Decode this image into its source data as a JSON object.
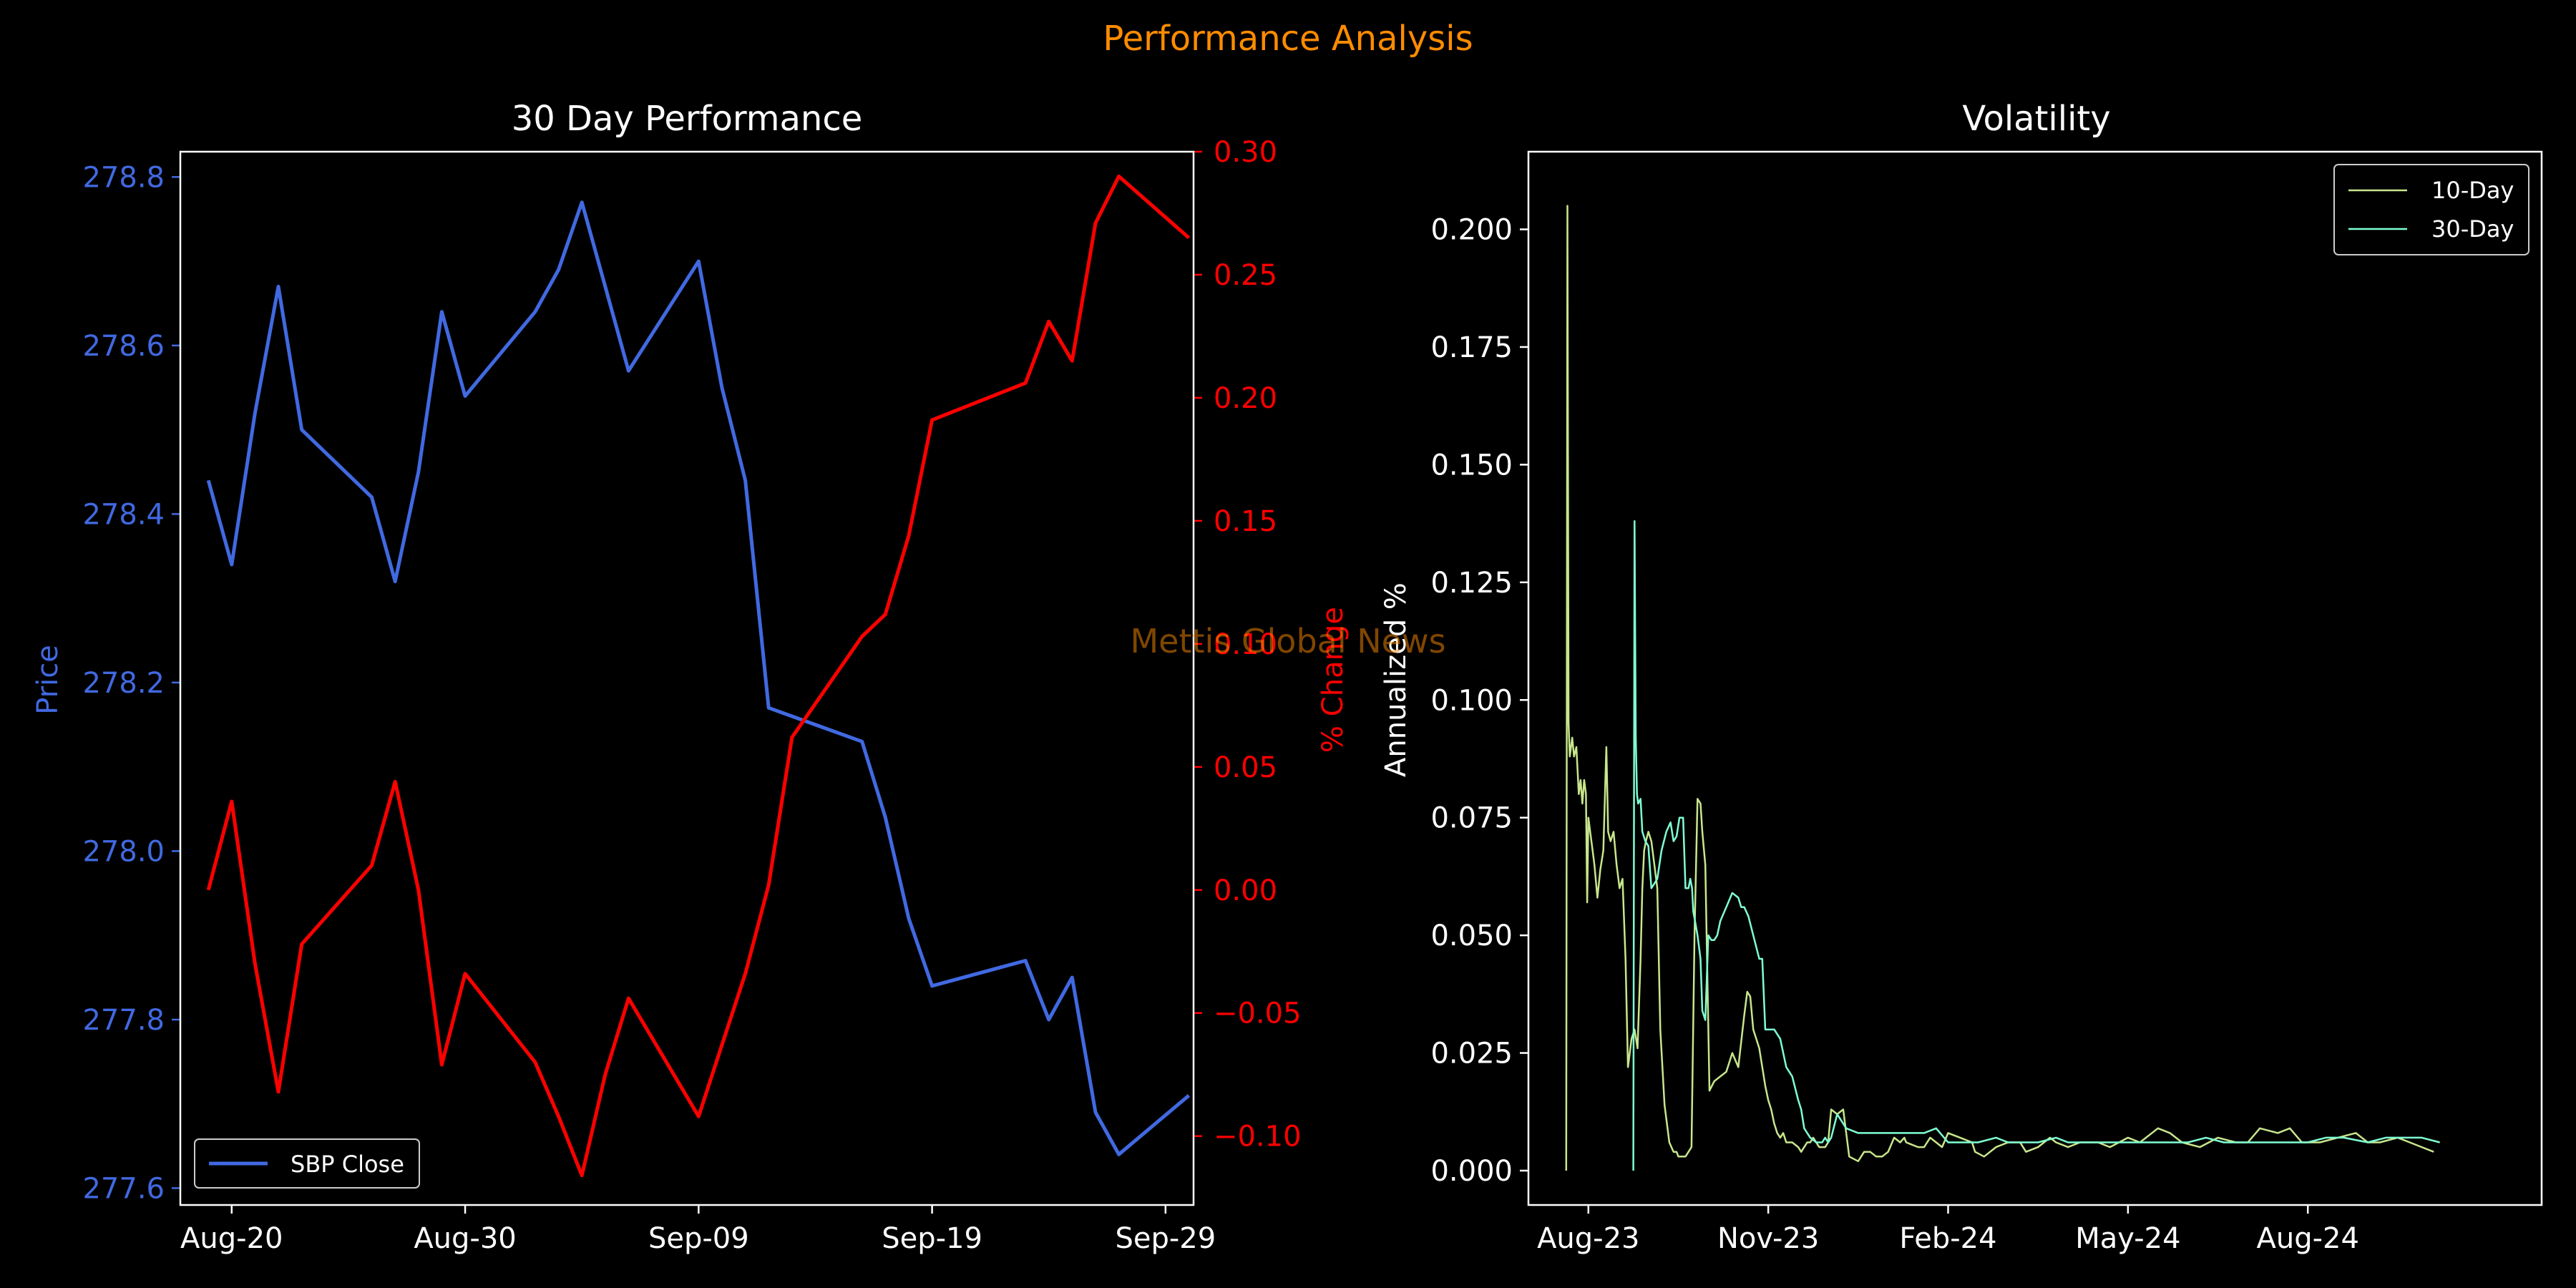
{
  "figure": {
    "suptitle": "Performance Analysis",
    "watermark": "Mettis Global News",
    "colors": {
      "background": "#000000",
      "suptitle": "#ff8c00",
      "price": "#4169e1",
      "pct": "#ff0000",
      "text": "#ffffff",
      "watermark": "#ff8c00",
      "vol10": "#c8e68c",
      "vol30": "#7fffd4"
    }
  },
  "chart_data": [
    {
      "type": "line",
      "title": "30 Day Performance",
      "xlabel": "",
      "ylabel": "Price",
      "y2label": "% Change",
      "xticks": [
        {
          "label": "Aug-20",
          "d": 0
        },
        {
          "label": "Aug-30",
          "d": 10
        },
        {
          "label": "Sep-09",
          "d": 20
        },
        {
          "label": "Sep-19",
          "d": 30
        },
        {
          "label": "Sep-29",
          "d": 40
        }
      ],
      "xlim": [
        -2.2,
        41.2
      ],
      "ylim": [
        277.58,
        278.83
      ],
      "yticks": [
        "277.6",
        "277.8",
        "278.0",
        "278.2",
        "278.4",
        "278.6",
        "278.8"
      ],
      "y2lim": [
        -0.128,
        0.3
      ],
      "y2ticks": [
        "−0.10",
        "−0.05",
        "0.00",
        "0.05",
        "0.10",
        "0.15",
        "0.20",
        "0.25",
        "0.30"
      ],
      "legend": {
        "entries": [
          "SBP Close"
        ],
        "position": "lower-left"
      },
      "series": [
        {
          "name": "SBP Close",
          "axis": "left",
          "x": [
            "Aug-19",
            "Aug-20",
            "Aug-21",
            "Aug-22",
            "Aug-23",
            "Aug-26",
            "Aug-27",
            "Aug-28",
            "Aug-29",
            "Aug-30",
            "Sep-02",
            "Sep-03",
            "Sep-04",
            "Sep-05",
            "Sep-06",
            "Sep-09",
            "Sep-10",
            "Sep-11",
            "Sep-12",
            "Sep-13",
            "Sep-16",
            "Sep-17",
            "Sep-18",
            "Sep-19",
            "Sep-23",
            "Sep-24",
            "Sep-25",
            "Sep-26",
            "Sep-27",
            "Sep-30"
          ],
          "d": [
            -1,
            0,
            1,
            2,
            3,
            6,
            7,
            8,
            9,
            10,
            13,
            14,
            15,
            16,
            17,
            20,
            21,
            22,
            23,
            24,
            27,
            28,
            29,
            30,
            34,
            35,
            36,
            37,
            38,
            41
          ],
          "y": [
            278.44,
            278.34,
            278.52,
            278.67,
            278.5,
            278.42,
            278.32,
            278.45,
            278.64,
            278.54,
            278.64,
            278.69,
            278.77,
            278.67,
            278.57,
            278.7,
            278.55,
            278.44,
            278.17,
            278.16,
            278.13,
            278.04,
            277.92,
            277.84,
            277.87,
            277.8,
            277.85,
            277.69,
            277.64,
            277.71
          ],
          "color": "#4169e1"
        },
        {
          "name": "% Change",
          "axis": "right",
          "x": [
            "Aug-19",
            "Aug-20",
            "Aug-21",
            "Aug-22",
            "Aug-23",
            "Aug-26",
            "Aug-27",
            "Aug-28",
            "Aug-29",
            "Aug-30",
            "Sep-02",
            "Sep-03",
            "Sep-04",
            "Sep-05",
            "Sep-06",
            "Sep-09",
            "Sep-10",
            "Sep-11",
            "Sep-12",
            "Sep-13",
            "Sep-16",
            "Sep-17",
            "Sep-18",
            "Sep-19",
            "Sep-23",
            "Sep-24",
            "Sep-25",
            "Sep-26",
            "Sep-27",
            "Sep-30"
          ],
          "d": [
            -1,
            0,
            1,
            2,
            3,
            6,
            7,
            8,
            9,
            10,
            13,
            14,
            15,
            16,
            17,
            20,
            21,
            22,
            23,
            24,
            27,
            28,
            29,
            30,
            34,
            35,
            36,
            37,
            38,
            41
          ],
          "y": [
            0.0,
            0.036,
            -0.03,
            -0.082,
            -0.022,
            0.01,
            0.044,
            0.0,
            -0.071,
            -0.034,
            -0.07,
            -0.092,
            -0.116,
            -0.075,
            -0.044,
            -0.092,
            -0.063,
            -0.034,
            0.002,
            0.062,
            0.103,
            0.112,
            0.144,
            0.191,
            0.206,
            0.231,
            0.215,
            0.271,
            0.29,
            0.265
          ],
          "color": "#ff0000"
        }
      ]
    },
    {
      "type": "line",
      "title": "Volatility",
      "xlabel": "",
      "ylabel": "Annualized %",
      "xticks": [
        {
          "label": "Aug-23",
          "m": 0
        },
        {
          "label": "Nov-23",
          "m": 3
        },
        {
          "label": "Feb-24",
          "m": 6
        },
        {
          "label": "May-24",
          "m": 9
        },
        {
          "label": "Aug-24",
          "m": 12
        }
      ],
      "xlim": [
        -1.0,
        15.9
      ],
      "ylim": [
        -0.0073,
        0.2165
      ],
      "yticks": [
        "0.000",
        "0.025",
        "0.050",
        "0.075",
        "0.100",
        "0.125",
        "0.150",
        "0.175",
        "0.200"
      ],
      "legend": {
        "entries": [
          "10-Day",
          "30-Day"
        ],
        "position": "top-right"
      },
      "series": [
        {
          "name": "10-Day",
          "color": "#c8e68c",
          "m": [
            -0.37,
            -0.35,
            -0.33,
            -0.31,
            -0.27,
            -0.24,
            -0.2,
            -0.16,
            -0.13,
            -0.1,
            -0.07,
            -0.04,
            -0.02,
            0.0,
            0.03,
            0.07,
            0.1,
            0.15,
            0.2,
            0.25,
            0.3,
            0.33,
            0.37,
            0.42,
            0.47,
            0.52,
            0.57,
            0.62,
            0.66,
            0.72,
            0.77,
            0.82,
            0.87,
            0.9,
            0.93,
            0.96,
            1.0,
            1.05,
            1.1,
            1.15,
            1.2,
            1.27,
            1.35,
            1.42,
            1.47,
            1.5,
            1.56,
            1.62,
            1.67,
            1.72,
            1.77,
            1.82,
            1.87,
            1.9,
            1.95,
            2.02,
            2.1,
            2.2,
            2.3,
            2.4,
            2.5,
            2.6,
            2.65,
            2.7,
            2.75,
            2.8,
            2.85,
            2.9,
            2.95,
            3.0,
            3.05,
            3.1,
            3.15,
            3.2,
            3.25,
            3.3,
            3.4,
            3.5,
            3.55,
            3.6,
            3.65,
            3.7,
            3.75,
            3.8,
            3.85,
            3.9,
            3.95,
            4.0,
            4.05,
            4.15,
            4.25,
            4.35,
            4.5,
            4.6,
            4.7,
            4.8,
            4.9,
            5.0,
            5.1,
            5.2,
            5.27,
            5.3,
            5.5,
            5.6,
            5.65,
            5.7,
            5.8,
            5.9,
            6.0,
            6.2,
            6.4,
            6.45,
            6.6,
            6.8,
            7.0,
            7.2,
            7.3,
            7.5,
            7.7,
            7.8,
            8.0,
            8.2,
            8.5,
            8.7,
            9.0,
            9.2,
            9.5,
            9.7,
            9.9,
            10.2,
            10.5,
            10.8,
            11.0,
            11.2,
            11.5,
            11.7,
            11.9,
            12.2,
            12.5,
            12.8,
            13.0,
            13.2,
            13.5,
            13.7,
            13.9,
            14.1,
            14.2
          ],
          "v": [
            0.0,
            0.205,
            0.095,
            0.088,
            0.092,
            0.088,
            0.09,
            0.08,
            0.083,
            0.078,
            0.083,
            0.08,
            0.057,
            0.075,
            0.072,
            0.068,
            0.065,
            0.058,
            0.064,
            0.068,
            0.09,
            0.072,
            0.07,
            0.072,
            0.065,
            0.06,
            0.062,
            0.045,
            0.022,
            0.028,
            0.03,
            0.026,
            0.045,
            0.06,
            0.068,
            0.07,
            0.072,
            0.07,
            0.065,
            0.06,
            0.03,
            0.014,
            0.006,
            0.004,
            0.004,
            0.003,
            0.003,
            0.003,
            0.004,
            0.005,
            0.05,
            0.079,
            0.078,
            0.072,
            0.065,
            0.017,
            0.019,
            0.02,
            0.021,
            0.025,
            0.022,
            0.033,
            0.038,
            0.037,
            0.03,
            0.028,
            0.026,
            0.022,
            0.018,
            0.015,
            0.013,
            0.01,
            0.008,
            0.007,
            0.008,
            0.006,
            0.006,
            0.005,
            0.004,
            0.005,
            0.006,
            0.006,
            0.007,
            0.006,
            0.005,
            0.005,
            0.005,
            0.006,
            0.013,
            0.012,
            0.013,
            0.003,
            0.002,
            0.004,
            0.004,
            0.003,
            0.003,
            0.004,
            0.007,
            0.006,
            0.007,
            0.006,
            0.005,
            0.005,
            0.006,
            0.007,
            0.006,
            0.005,
            0.008,
            0.007,
            0.006,
            0.004,
            0.003,
            0.005,
            0.006,
            0.006,
            0.004,
            0.005,
            0.007,
            0.006,
            0.005,
            0.006,
            0.006,
            0.005,
            0.007,
            0.006,
            0.009,
            0.008,
            0.006,
            0.005,
            0.007,
            0.006,
            0.006,
            0.009,
            0.008,
            0.009,
            0.006,
            0.006,
            0.007,
            0.008,
            0.006,
            0.006,
            0.007,
            0.006,
            0.005,
            0.004
          ],
          "dataset": "10-Day"
        },
        {
          "name": "30-Day",
          "color": "#7fffd4",
          "m": [
            0.75,
            0.77,
            0.79,
            0.81,
            0.83,
            0.87,
            0.9,
            0.95,
            1.0,
            1.05,
            1.1,
            1.15,
            1.22,
            1.3,
            1.37,
            1.42,
            1.47,
            1.52,
            1.58,
            1.62,
            1.67,
            1.7,
            1.73,
            1.75,
            1.78,
            1.82,
            1.87,
            1.9,
            1.95,
            2.0,
            2.05,
            2.1,
            2.15,
            2.2,
            2.3,
            2.4,
            2.5,
            2.55,
            2.6,
            2.67,
            2.75,
            2.85,
            2.9,
            2.95,
            3.0,
            3.05,
            3.1,
            3.2,
            3.3,
            3.4,
            3.5,
            3.55,
            3.6,
            3.65,
            3.7,
            3.8,
            3.9,
            3.95,
            4.0,
            4.05,
            4.15,
            4.3,
            4.5,
            4.6,
            4.7,
            4.8,
            4.9,
            5.0,
            5.2,
            5.4,
            5.5,
            5.6,
            5.8,
            6.0,
            6.2,
            6.5,
            6.8,
            7.0,
            7.2,
            7.5,
            7.8,
            8.0,
            8.3,
            8.6,
            9.0,
            9.3,
            9.6,
            10.0,
            10.3,
            10.6,
            11.0,
            11.3,
            11.6,
            12.0,
            12.3,
            12.6,
            13.0,
            13.3,
            13.6,
            13.9,
            14.2
          ],
          "v": [
            0.0,
            0.138,
            0.092,
            0.08,
            0.078,
            0.079,
            0.072,
            0.07,
            0.069,
            0.06,
            0.061,
            0.062,
            0.068,
            0.072,
            0.074,
            0.07,
            0.071,
            0.075,
            0.075,
            0.06,
            0.06,
            0.062,
            0.06,
            0.055,
            0.053,
            0.05,
            0.045,
            0.034,
            0.032,
            0.05,
            0.049,
            0.049,
            0.05,
            0.053,
            0.056,
            0.059,
            0.058,
            0.056,
            0.056,
            0.054,
            0.05,
            0.045,
            0.045,
            0.03,
            0.03,
            0.03,
            0.03,
            0.028,
            0.022,
            0.02,
            0.015,
            0.013,
            0.009,
            0.008,
            0.007,
            0.006,
            0.006,
            0.007,
            0.006,
            0.007,
            0.012,
            0.009,
            0.008,
            0.008,
            0.008,
            0.008,
            0.008,
            0.008,
            0.008,
            0.008,
            0.008,
            0.008,
            0.009,
            0.006,
            0.006,
            0.006,
            0.007,
            0.006,
            0.006,
            0.006,
            0.007,
            0.006,
            0.006,
            0.006,
            0.006,
            0.006,
            0.006,
            0.006,
            0.007,
            0.006,
            0.006,
            0.006,
            0.006,
            0.006,
            0.007,
            0.007,
            0.006,
            0.007,
            0.007,
            0.007,
            0.006
          ]
        }
      ]
    }
  ]
}
